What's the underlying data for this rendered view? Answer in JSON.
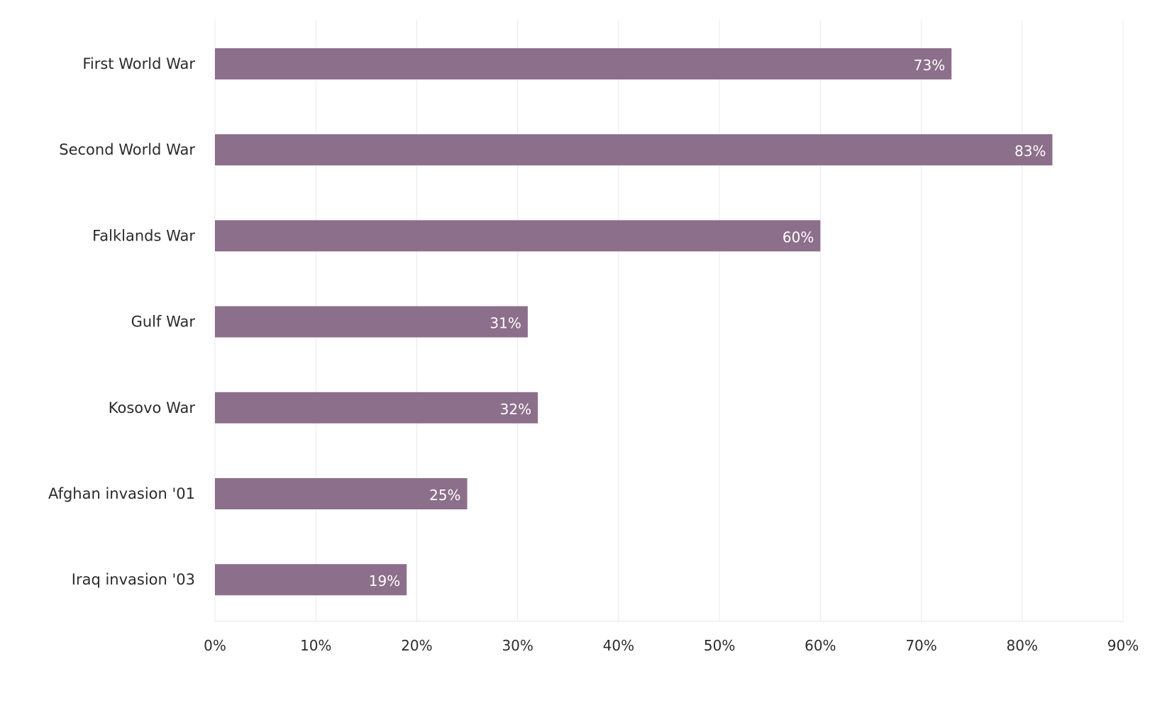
{
  "chart_data": {
    "type": "bar",
    "orientation": "horizontal",
    "categories": [
      "First World War",
      "Second World War",
      "Falklands War",
      "Gulf War",
      "Kosovo War",
      "Afghan invasion '01",
      "Iraq invasion '03"
    ],
    "values": [
      73,
      83,
      60,
      31,
      32,
      25,
      19
    ],
    "value_labels": [
      "73%",
      "83%",
      "60%",
      "31%",
      "32%",
      "25%",
      "19%"
    ],
    "title": "",
    "xlabel": "",
    "ylabel": "",
    "xlim": [
      0,
      90
    ],
    "x_ticks": [
      0,
      10,
      20,
      30,
      40,
      50,
      60,
      70,
      80,
      90
    ],
    "x_tick_labels": [
      "0%",
      "10%",
      "20%",
      "30%",
      "40%",
      "50%",
      "60%",
      "70%",
      "80%",
      "90%"
    ],
    "grid": true,
    "legend": "none",
    "bar_color": "#8c6f8a"
  }
}
